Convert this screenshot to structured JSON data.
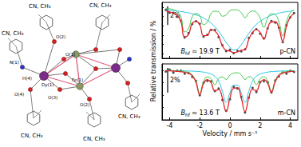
{
  "diagram": {
    "ligand_labels": [
      "CN, CH₃",
      "CN, CH₃",
      "CN, CH₃",
      "CN, CH₃",
      "CN, CH₃",
      "CN, CH₃"
    ],
    "atom_labels": [
      "O(2)",
      "O(1)",
      "N(1)",
      "H(4)",
      "Dy(1)",
      "O(4)",
      "O(3)",
      "Fe(1)",
      "O(2)"
    ]
  },
  "chart_data": [
    {
      "type": "line",
      "ylabel": "Relative transmission / %",
      "annotations": [
        "Bhf ≈ 19.9 T",
        "p-CN"
      ],
      "scale_bar": {
        "value": 2,
        "label": "2%"
      },
      "xlim": [
        -4.5,
        4.5
      ],
      "xticks": [
        -4,
        -2,
        0,
        2,
        4
      ],
      "ylim": [
        94.5,
        100.5
      ],
      "yticks": [
        95,
        96,
        97,
        98,
        99,
        100
      ],
      "tick_labels": false,
      "x": [
        -4.25,
        -4,
        -3.75,
        -3.5,
        -3.25,
        -3,
        -2.75,
        -2.5,
        -2.25,
        -2,
        -1.75,
        -1.5,
        -1.25,
        -1,
        -0.75,
        -0.5,
        -0.25,
        0,
        0.25,
        0.5,
        0.75,
        1,
        1.25,
        1.5,
        1.75,
        2,
        2.25,
        2.5,
        2.75,
        3,
        3.25,
        3.5,
        3.75,
        4,
        4.25
      ],
      "series": [
        {
          "type": "line",
          "color": "#22c4e4",
          "line_style": "solid",
          "values": [
            99.7,
            99.66,
            99.62,
            99.58,
            99.52,
            99.46,
            99.38,
            99.28,
            99.16,
            99.02,
            98.82,
            98.58,
            98.28,
            97.88,
            97.4,
            96.82,
            96.2,
            95.68,
            95.4,
            95.52,
            95.96,
            96.56,
            97.18,
            97.7,
            98.14,
            98.46,
            98.74,
            98.94,
            99.12,
            99.24,
            99.34,
            99.44,
            99.5,
            99.56,
            99.6
          ]
        },
        {
          "type": "line",
          "color": "#3fc94a",
          "line_style": "solid",
          "values": [
            99.88,
            99.82,
            99.72,
            99.52,
            98.92,
            97.34,
            97.68,
            98.98,
            99.3,
            99.08,
            98.12,
            98.38,
            99.3,
            99.56,
            99.5,
            99.02,
            99.16,
            99.6,
            99.7,
            99.68,
            99.4,
            98.88,
            99.36,
            99.58,
            99.44,
            98.82,
            97.82,
            98.8,
            99.28,
            99.18,
            98.38,
            96.92,
            98.44,
            99.36,
            99.68
          ]
        },
        {
          "type": "scatter",
          "color": "#1a1a1a",
          "marker": "circle",
          "values": [
            99.7,
            99.38,
            99.39,
            98.96,
            98.52,
            96.74,
            97.21,
            98.17,
            98.48,
            98.21,
            96.81,
            97.03,
            97.54,
            97.54,
            96.78,
            95.9,
            95.28,
            95.41,
            95.05,
            95.29,
            95.25,
            95.47,
            96.68,
            97.21,
            97.62,
            97.13,
            96.64,
            97.72,
            98.5,
            98.33,
            97.78,
            96.24,
            98.05,
            98.89,
            99.35
          ]
        },
        {
          "type": "line",
          "color": "#e3262b",
          "line_style": "solid",
          "values": [
            99.58,
            99.48,
            99.34,
            99.1,
            98.44,
            96.8,
            97.06,
            98.26,
            98.46,
            98.1,
            96.94,
            96.96,
            97.58,
            97.44,
            96.9,
            95.84,
            95.36,
            95.28,
            95.1,
            95.2,
            95.36,
            95.44,
            96.54,
            97.28,
            97.58,
            97.28,
            96.56,
            97.74,
            98.4,
            98.42,
            97.72,
            96.36,
            97.94,
            98.92,
            99.28
          ]
        }
      ]
    },
    {
      "type": "line",
      "xlabel": "Velocity / mm s⁻¹",
      "annotations": [
        "Bhf ≈ 13.6 T",
        "m-CN"
      ],
      "scale_bar": {
        "value": 2,
        "label": "2%"
      },
      "xlim": [
        -4.5,
        4.5
      ],
      "xticks": [
        -4,
        -2,
        0,
        2,
        4
      ],
      "ylim": [
        96,
        100.5
      ],
      "yticks": [
        96,
        97,
        98,
        99,
        100
      ],
      "tick_labels": "x",
      "x": [
        -4.25,
        -4,
        -3.75,
        -3.5,
        -3.25,
        -3,
        -2.75,
        -2.5,
        -2.25,
        -2,
        -1.75,
        -1.5,
        -1.25,
        -1,
        -0.75,
        -0.5,
        -0.25,
        0,
        0.25,
        0.5,
        0.75,
        1,
        1.25,
        1.5,
        1.75,
        2,
        2.25,
        2.5,
        2.75,
        3,
        3.25,
        3.5,
        3.75,
        4,
        4.25
      ],
      "series": [
        {
          "type": "line",
          "color": "#22c4e4",
          "line_style": "solid",
          "values": [
            99.97,
            99.97,
            99.96,
            99.96,
            99.95,
            99.94,
            99.93,
            99.92,
            99.9,
            99.88,
            99.84,
            99.78,
            99.68,
            99.5,
            99.12,
            98.29,
            97.42,
            98.15,
            98.78,
            98.78,
            98.15,
            97.42,
            98.29,
            99.12,
            99.5,
            99.68,
            99.78,
            99.84,
            99.88,
            99.9,
            99.92,
            99.93,
            99.94,
            99.95,
            99.96
          ]
        },
        {
          "type": "line",
          "color": "#3fc94a",
          "line_style": "solid",
          "values": [
            99.98,
            99.97,
            99.96,
            99.94,
            99.92,
            99.88,
            99.81,
            99.62,
            99.1,
            98.15,
            99.08,
            99.45,
            99.3,
            98.84,
            99.32,
            99.45,
            99.25,
            99.6,
            99.76,
            99.79,
            99.6,
            99.25,
            99.47,
            99.33,
            98.84,
            99.3,
            99.46,
            99.1,
            98.34,
            99.16,
            99.65,
            99.82,
            99.89,
            99.93,
            99.95
          ]
        },
        {
          "type": "scatter",
          "color": "#1a1a1a",
          "marker": "circle",
          "values": [
            99.89,
            100.04,
            99.8,
            99.95,
            99.96,
            99.71,
            99.78,
            99.46,
            99.13,
            97.98,
            98.99,
            99.13,
            99.1,
            98.31,
            98.52,
            97.6,
            96.73,
            97.66,
            98.65,
            98.53,
            97.85,
            96.6,
            97.78,
            98.57,
            98.24,
            99.03,
            99.11,
            99.03,
            98.2,
            99.17,
            99.49,
            99.81,
            99.71,
            99.95,
            99.86
          ]
        },
        {
          "type": "line",
          "color": "#e3262b",
          "line_style": "solid",
          "values": [
            99.95,
            99.94,
            99.92,
            99.9,
            99.87,
            99.82,
            99.74,
            99.54,
            99.0,
            98.03,
            98.92,
            99.23,
            98.98,
            98.34,
            98.44,
            97.74,
            96.67,
            97.75,
            98.54,
            98.57,
            97.75,
            96.67,
            97.76,
            98.45,
            98.34,
            98.98,
            99.24,
            98.94,
            98.22,
            99.06,
            99.57,
            99.75,
            99.83,
            99.88,
            99.91
          ]
        }
      ]
    }
  ]
}
